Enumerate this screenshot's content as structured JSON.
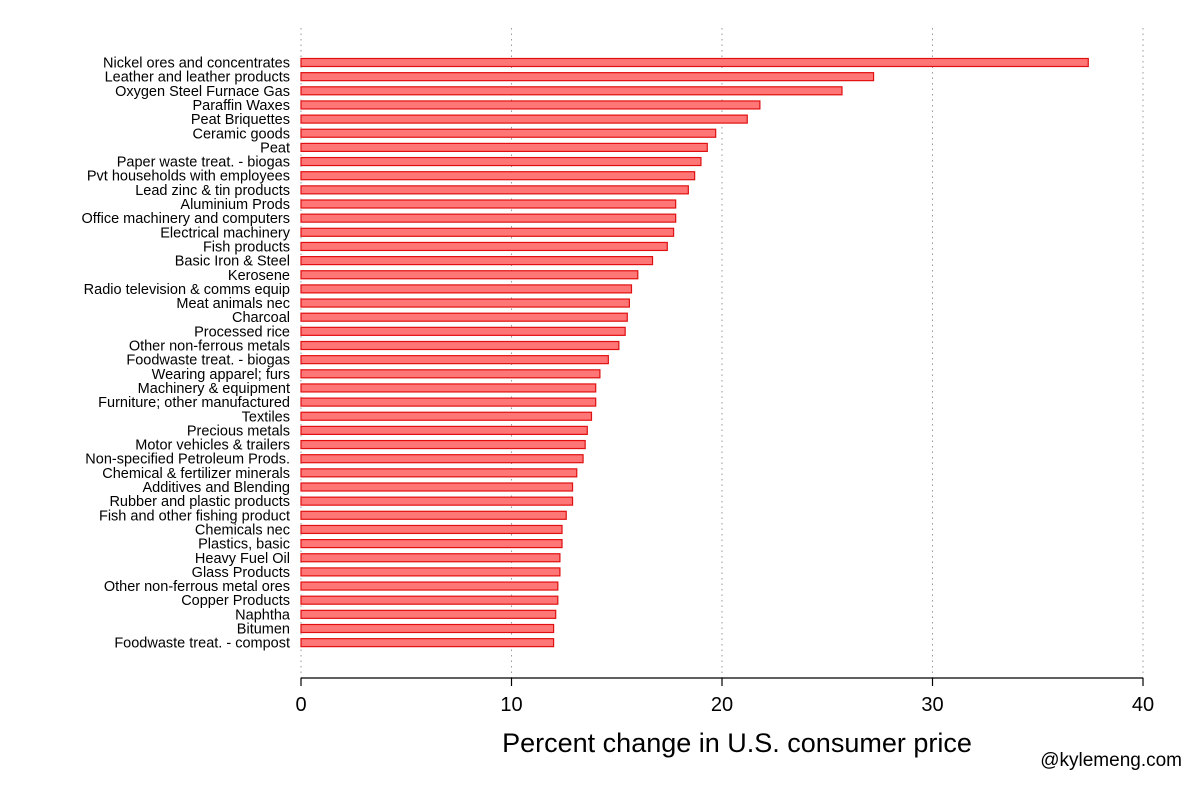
{
  "chart_data": {
    "type": "bar",
    "orientation": "horizontal",
    "title": "",
    "xlabel": "Percent change in U.S. consumer price",
    "ylabel": "",
    "xlim": [
      0,
      40
    ],
    "xticks": [
      0,
      10,
      20,
      30,
      40
    ],
    "grid": true,
    "legend": null,
    "bar_color": "#ff7676",
    "bar_edge_color": "#e01010",
    "credit": "@kylemeng.com",
    "categories": [
      "Nickel ores and concentrates",
      "Leather and leather products",
      "Oxygen Steel Furnace Gas",
      "Paraffin Waxes",
      "Peat Briquettes",
      "Ceramic goods",
      "Peat",
      "Paper waste treat. - biogas",
      "Pvt households with employees",
      "Lead zinc & tin products",
      "Aluminium Prods",
      "Office machinery and computers",
      "Electrical machinery",
      "Fish products",
      "Basic Iron & Steel",
      "Kerosene",
      "Radio television & comms equip",
      "Meat animals nec",
      "Charcoal",
      "Processed rice",
      "Other non-ferrous metals",
      "Foodwaste treat. - biogas",
      "Wearing apparel; furs",
      "Machinery & equipment",
      "Furniture; other manufactured",
      "Textiles",
      "Precious metals",
      "Motor vehicles & trailers",
      "Non-specified Petroleum Prods.",
      "Chemical & fertilizer minerals",
      "Additives and Blending",
      "Rubber and plastic products",
      "Fish and other fishing product",
      "Chemicals nec",
      "Plastics, basic",
      "Heavy Fuel Oil",
      "Glass Products",
      "Other non-ferrous metal ores",
      "Copper Products",
      "Naphtha",
      "Bitumen",
      "Foodwaste treat. - compost"
    ],
    "values": [
      37.4,
      27.2,
      25.7,
      21.8,
      21.2,
      19.7,
      19.3,
      19.0,
      18.7,
      18.4,
      17.8,
      17.8,
      17.7,
      17.4,
      16.7,
      16.0,
      15.7,
      15.6,
      15.5,
      15.4,
      15.1,
      14.6,
      14.2,
      14.0,
      14.0,
      13.8,
      13.6,
      13.5,
      13.4,
      13.1,
      12.9,
      12.9,
      12.6,
      12.4,
      12.4,
      12.3,
      12.3,
      12.2,
      12.2,
      12.1,
      12.0,
      12.0
    ]
  }
}
